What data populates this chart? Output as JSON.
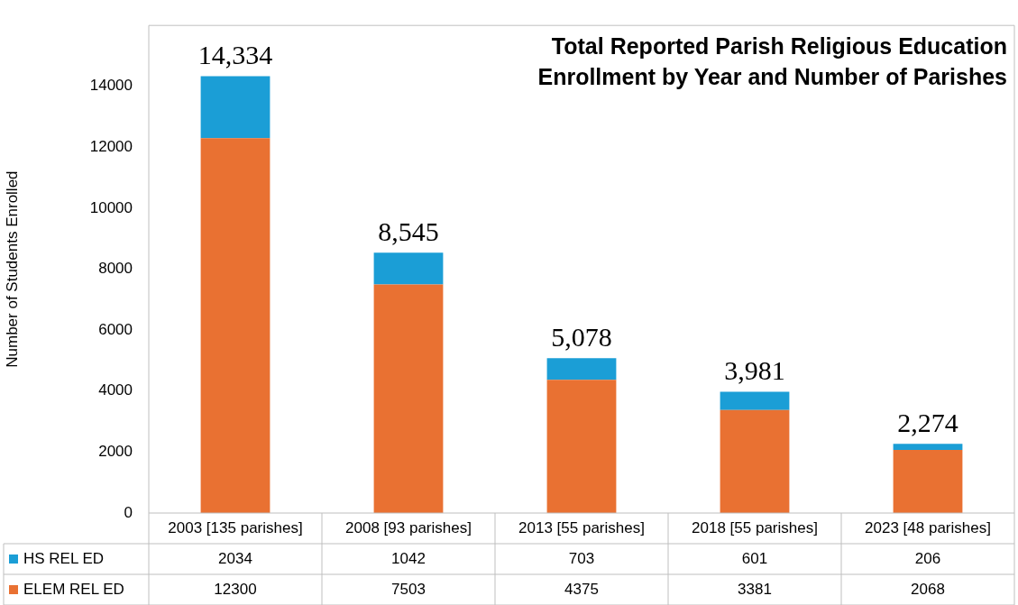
{
  "chart_data": {
    "type": "bar",
    "title": "Total Reported Parish Religious Education Enrollment by Year and Number of Parishes",
    "ylabel": "Number of Students Enrolled",
    "categories": [
      "2003 [135 parishes]",
      "2008 [93 parishes]",
      "2013 [55 parishes]",
      "2018 [55 parishes]",
      "2023 [48 parishes]"
    ],
    "stacked": true,
    "series": [
      {
        "name": "ELEM REL ED",
        "color": "#e97132",
        "values": [
          12300,
          7503,
          4375,
          3381,
          2068
        ]
      },
      {
        "name": "HS REL ED",
        "color": "#1b9ed6",
        "values": [
          2034,
          1042,
          703,
          601,
          206
        ]
      }
    ],
    "totals": [
      "14,334",
      "8,545",
      "5,078",
      "3,981",
      "2,274"
    ],
    "data_labels": true,
    "ylim": [
      0,
      16000
    ],
    "yticks": [
      0,
      2000,
      4000,
      6000,
      8000,
      10000,
      12000,
      14000
    ],
    "grid": false,
    "legend": "bottom left"
  }
}
